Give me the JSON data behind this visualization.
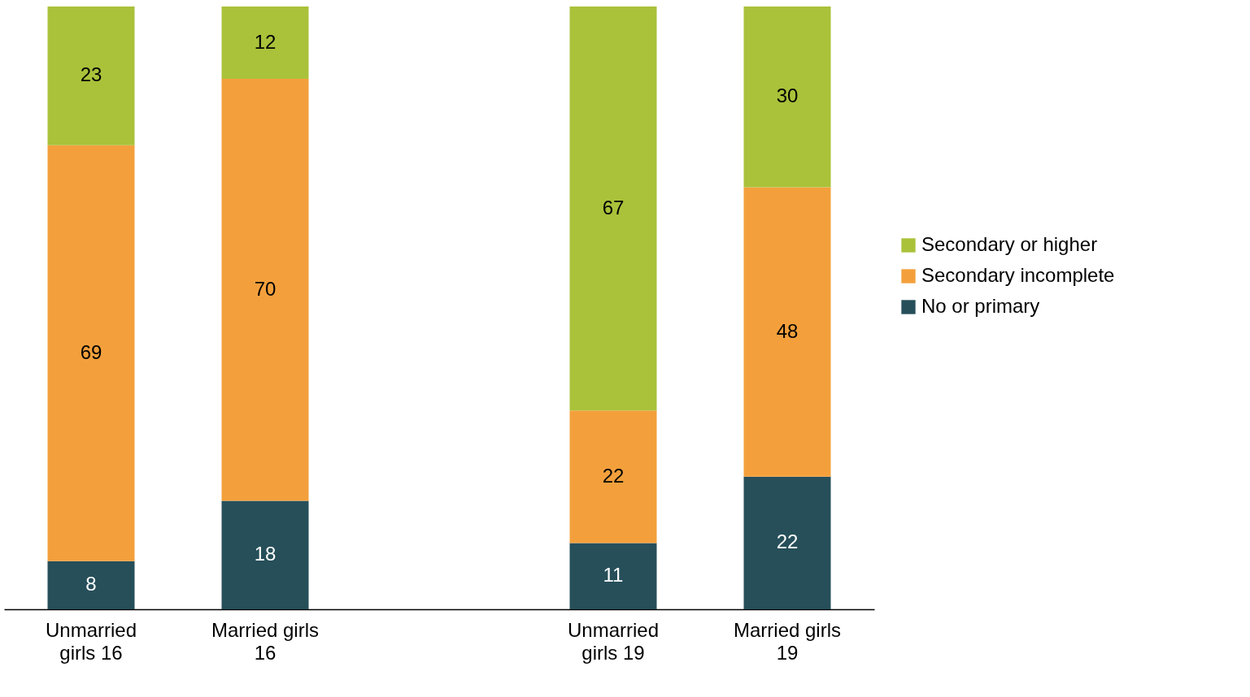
{
  "chart_data": {
    "type": "bar",
    "stacked": true,
    "data_labels": true,
    "legend": "right",
    "tick_labels": "x",
    "categories": [
      "Unmarried girls 16",
      "Married girls 16",
      null,
      "Unmarried girls 19",
      "Married girls 19"
    ],
    "ylim": [
      0,
      100
    ],
    "series": [
      {
        "name": "No or primary",
        "color": "#264f5a",
        "values": [
          8,
          18,
          null,
          11,
          22
        ]
      },
      {
        "name": "Secondary incomplete",
        "color": "#f3a03c",
        "values": [
          69,
          70,
          null,
          22,
          48
        ]
      },
      {
        "name": "Secondary or higher",
        "color": "#a9c23a",
        "values": [
          23,
          12,
          null,
          67,
          30
        ]
      }
    ]
  }
}
